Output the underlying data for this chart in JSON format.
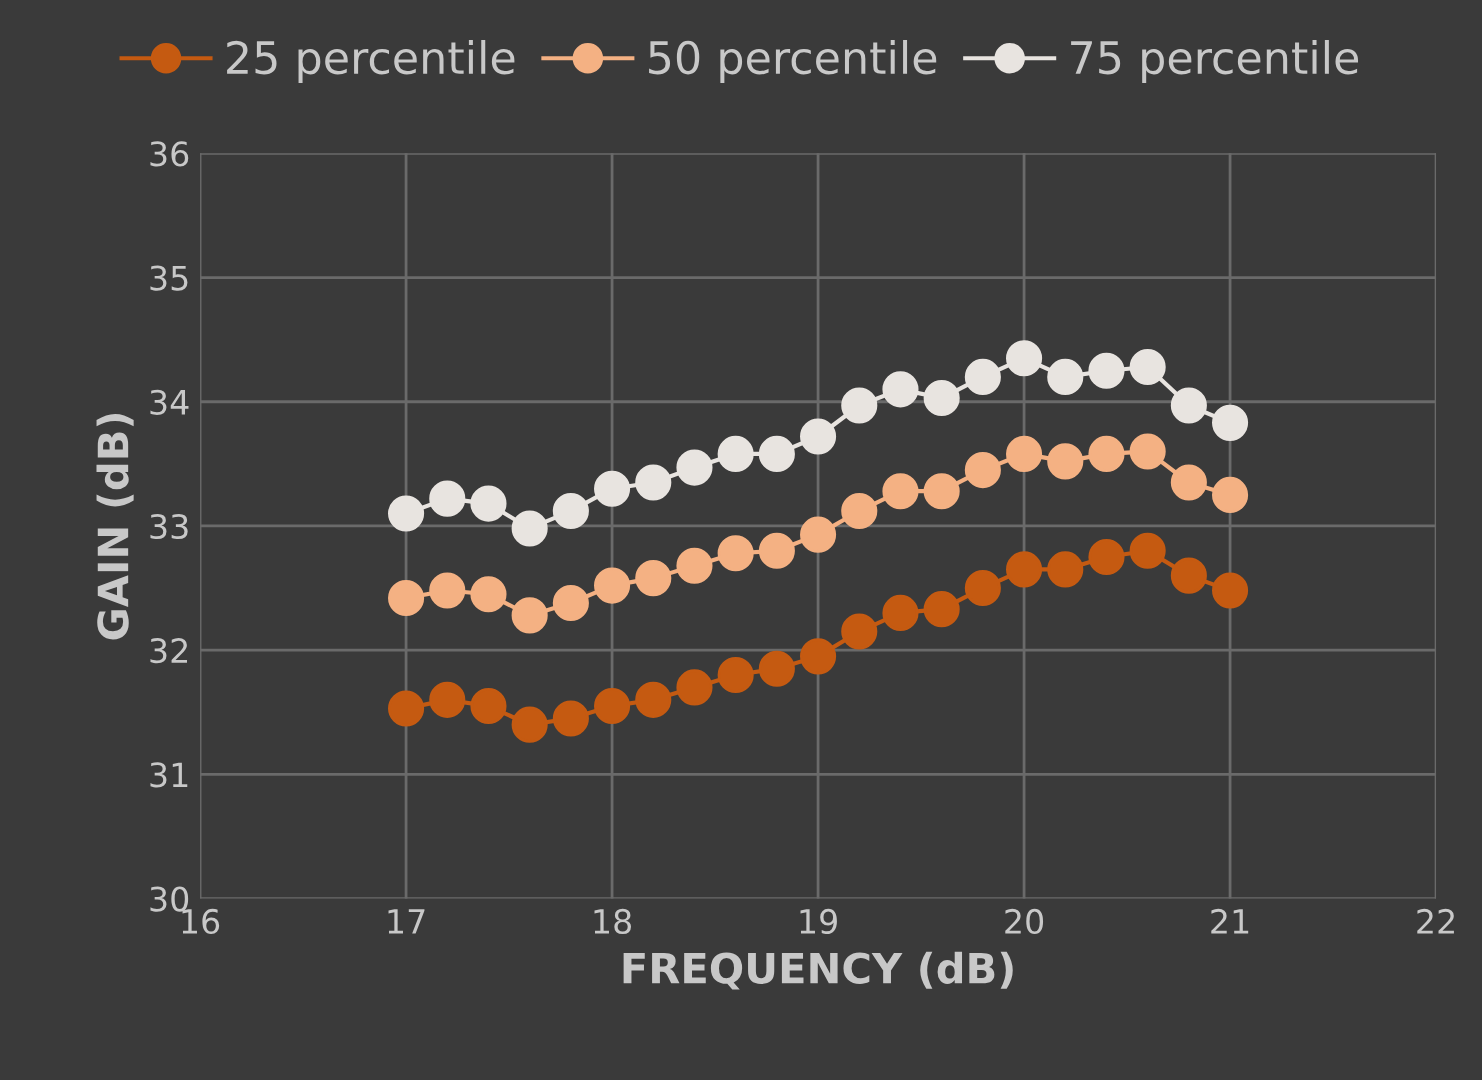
{
  "chart_data": {
    "type": "line",
    "xlabel": "FREQUENCY (dB)",
    "ylabel": "GAIN (dB)",
    "x": [
      17,
      17.2,
      17.4,
      17.6,
      17.8,
      18,
      18.2,
      18.4,
      18.6,
      18.8,
      19,
      19.2,
      19.4,
      19.6,
      19.8,
      20,
      20.2,
      20.4,
      20.6,
      20.8,
      21
    ],
    "series": [
      {
        "name": "25 percentile",
        "color": "#c55a11",
        "values": [
          31.53,
          31.6,
          31.55,
          31.4,
          31.45,
          31.55,
          31.6,
          31.7,
          31.8,
          31.85,
          31.95,
          32.15,
          32.3,
          32.33,
          32.5,
          32.65,
          32.65,
          32.75,
          32.8,
          32.6,
          32.48
        ]
      },
      {
        "name": "50 percentile",
        "color": "#f4b183",
        "values": [
          32.42,
          32.48,
          32.45,
          32.28,
          32.38,
          32.52,
          32.58,
          32.68,
          32.78,
          32.8,
          32.93,
          33.12,
          33.28,
          33.28,
          33.45,
          33.58,
          33.52,
          33.58,
          33.6,
          33.35,
          33.25
        ]
      },
      {
        "name": "75 percentile",
        "color": "#e8e4e0",
        "values": [
          33.1,
          33.22,
          33.18,
          32.98,
          33.12,
          33.3,
          33.35,
          33.47,
          33.58,
          33.58,
          33.72,
          33.97,
          34.1,
          34.03,
          34.2,
          34.35,
          34.2,
          34.25,
          34.28,
          33.97,
          33.83
        ]
      }
    ],
    "xlim": [
      16,
      22
    ],
    "xticks": [
      16,
      17,
      18,
      19,
      20,
      21,
      22
    ],
    "ylim": [
      30,
      36
    ],
    "yticks": [
      30,
      31,
      32,
      33,
      34,
      35,
      36
    ],
    "grid": true,
    "legend": "top",
    "marker": "circle",
    "line_style": "solid"
  }
}
